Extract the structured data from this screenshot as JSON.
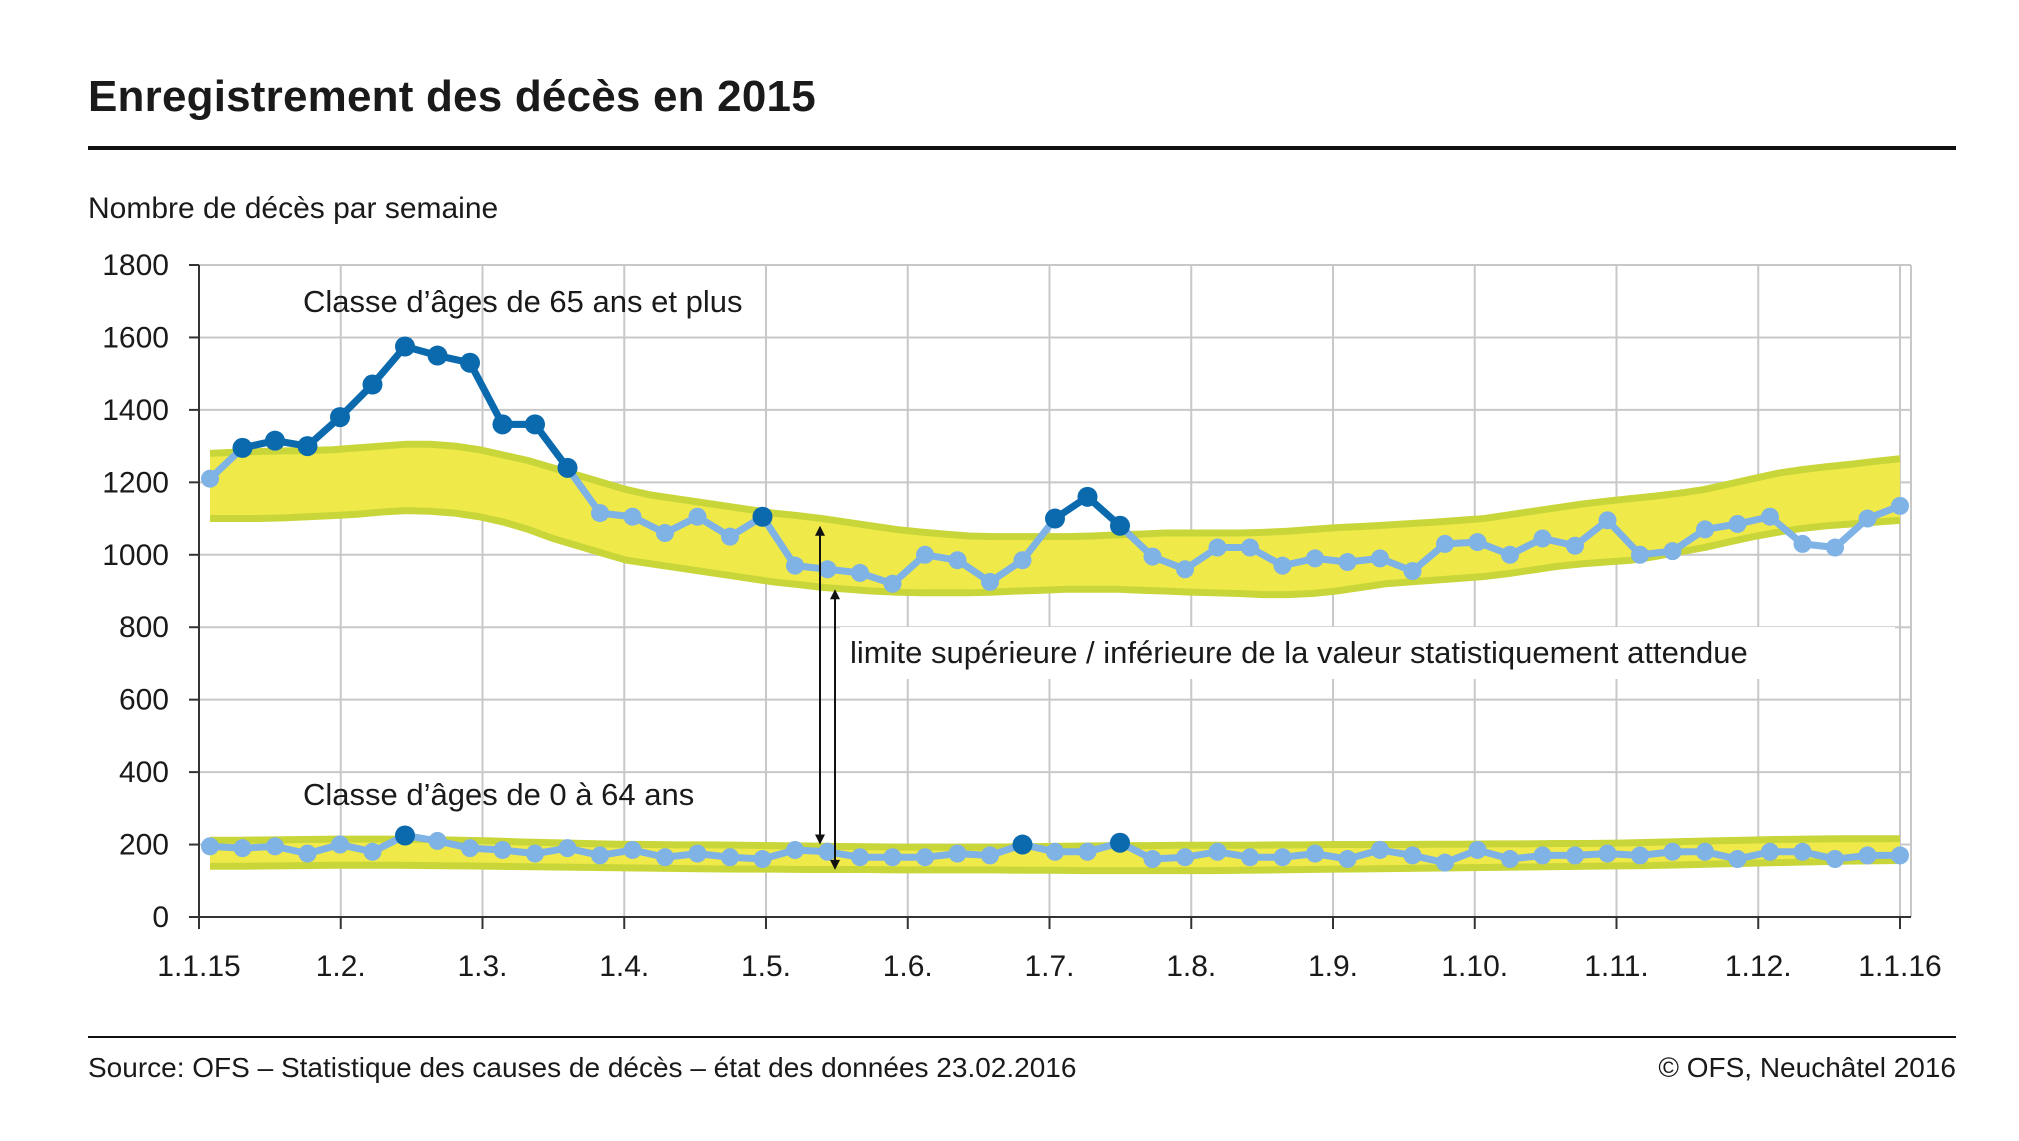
{
  "title": "Enregistrement des décès en 2015",
  "source": "Source: OFS – Statistique des causes de décès – état des données 23.02.2016",
  "copyright": "© OFS, Neuchâtel 2016",
  "colors": {
    "band_fill": "#f0e94a",
    "band_edge": "#c9d63a",
    "series_light": "#7fb2e5",
    "series_dark": "#0a6aad",
    "grid": "#c8c8c8"
  },
  "chart_data": {
    "type": "line",
    "title": "Enregistrement des décès en 2015",
    "ylabel": "Nombre de décès par semaine",
    "xlabel": "",
    "ylim": [
      0,
      1800
    ],
    "yticks": [
      0,
      200,
      400,
      600,
      800,
      1000,
      1200,
      1400,
      1600,
      1800
    ],
    "x_tick_labels": [
      "1.1.15",
      "1.2.",
      "1.3.",
      "1.4.",
      "1.5.",
      "1.6.",
      "1.7.",
      "1.8.",
      "1.9.",
      "1.10.",
      "1.11.",
      "1.12.",
      "1.1.16"
    ],
    "grid": true,
    "x_unit": "weeks of 2015 (week 1 to 53)",
    "annotations": {
      "label_65plus": "Classe d’âges de 65 ans et plus",
      "label_0_64": "Classe d’âges de 0 à 64 ans",
      "band_label": "limite supérieure / inférieure de la valeur statistiquement attendue"
    },
    "series": [
      {
        "name": "Classe d’âges de 65 ans et plus",
        "values": [
          1210,
          1295,
          1315,
          1300,
          1380,
          1470,
          1575,
          1550,
          1530,
          1360,
          1360,
          1240,
          1115,
          1105,
          1060,
          1105,
          1050,
          1105,
          970,
          960,
          950,
          920,
          1000,
          985,
          925,
          985,
          1100,
          1160,
          1080,
          995,
          960,
          1020,
          1020,
          970,
          990,
          980,
          990,
          955,
          1030,
          1035,
          1000,
          1045,
          1025,
          1095,
          1000,
          1010,
          1070,
          1085,
          1105,
          1030,
          1020,
          1100,
          1135
        ],
        "highlighted_weeks": [
          2,
          3,
          4,
          5,
          6,
          7,
          8,
          9,
          10,
          11,
          12,
          18,
          27,
          28,
          29
        ]
      },
      {
        "name": "Classe d’âges de 0 à 64 ans",
        "values": [
          195,
          190,
          195,
          175,
          200,
          180,
          225,
          210,
          190,
          185,
          175,
          190,
          170,
          185,
          165,
          175,
          165,
          160,
          185,
          180,
          165,
          165,
          165,
          175,
          170,
          200,
          180,
          180,
          205,
          160,
          165,
          180,
          165,
          165,
          175,
          160,
          185,
          170,
          150,
          185,
          160,
          170,
          170,
          175,
          170,
          180,
          180,
          160,
          180,
          180,
          160,
          170,
          170
        ],
        "highlighted_weeks": [
          7,
          26,
          29
        ]
      }
    ],
    "bands": [
      {
        "name": "65+ expected range",
        "upper": [
          1280,
          1283,
          1285,
          1287,
          1288,
          1290,
          1295,
          1300,
          1305,
          1305,
          1300,
          1290,
          1275,
          1260,
          1240,
          1220,
          1200,
          1180,
          1165,
          1155,
          1145,
          1135,
          1125,
          1115,
          1108,
          1100,
          1090,
          1080,
          1070,
          1063,
          1057,
          1052,
          1050,
          1050,
          1050,
          1050,
          1052,
          1055,
          1057,
          1060,
          1060,
          1060,
          1060,
          1062,
          1065,
          1070,
          1075,
          1078,
          1082,
          1086,
          1090,
          1095,
          1100,
          1110,
          1120,
          1130,
          1140,
          1148,
          1155,
          1162,
          1170,
          1180,
          1195,
          1210,
          1225,
          1235,
          1243,
          1250,
          1258,
          1265
        ],
        "lower": [
          1100,
          1100,
          1100,
          1102,
          1105,
          1108,
          1112,
          1118,
          1122,
          1120,
          1115,
          1105,
          1090,
          1070,
          1045,
          1025,
          1005,
          985,
          975,
          965,
          955,
          945,
          935,
          925,
          918,
          910,
          905,
          900,
          897,
          895,
          895,
          895,
          897,
          900,
          902,
          905,
          905,
          905,
          902,
          900,
          897,
          895,
          893,
          890,
          890,
          893,
          900,
          910,
          920,
          925,
          930,
          935,
          940,
          948,
          958,
          968,
          975,
          980,
          985,
          995,
          1008,
          1020,
          1035,
          1050,
          1062,
          1073,
          1080,
          1085,
          1090,
          1095
        ]
      },
      {
        "name": "0-64 expected range",
        "upper": [
          212,
          212,
          213,
          214,
          215,
          215,
          215,
          214,
          212,
          210,
          207,
          205,
          203,
          201,
          200,
          199,
          199,
          198,
          197,
          196,
          195,
          194,
          193,
          193,
          193,
          193,
          194,
          195,
          196,
          197,
          197,
          198,
          198,
          198,
          199,
          199,
          200,
          200,
          200,
          201,
          201,
          202,
          202,
          203,
          203,
          204,
          206,
          208,
          210,
          212,
          214,
          215,
          216,
          216,
          216
        ],
        "lower": [
          140,
          140,
          141,
          142,
          143,
          143,
          143,
          142,
          141,
          140,
          139,
          138,
          137,
          136,
          135,
          134,
          133,
          132,
          132,
          131,
          131,
          131,
          130,
          130,
          130,
          130,
          129,
          129,
          128,
          128,
          128,
          128,
          128,
          129,
          130,
          131,
          132,
          133,
          134,
          135,
          136,
          137,
          138,
          139,
          140,
          141,
          142,
          144,
          146,
          148,
          150,
          152,
          154,
          155,
          156
        ]
      }
    ]
  }
}
